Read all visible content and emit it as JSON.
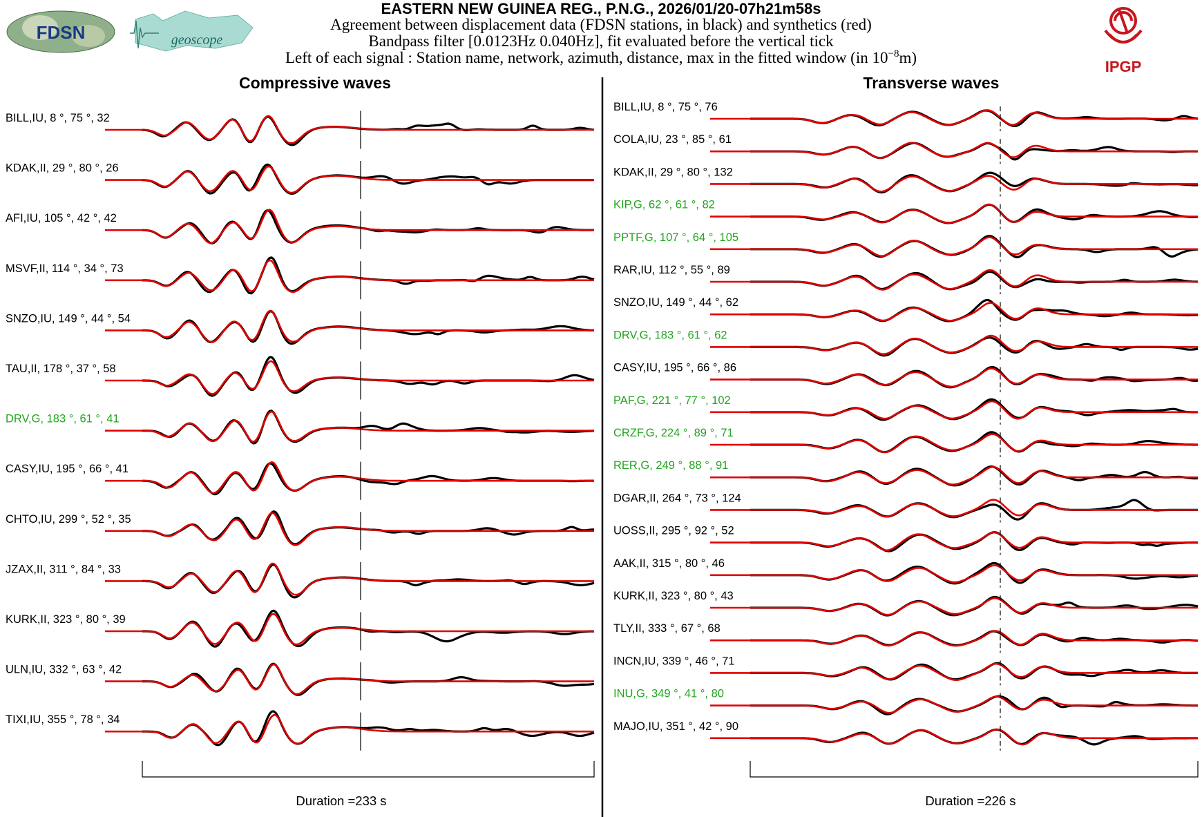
{
  "header": {
    "title": "EASTERN NEW GUINEA REG., P.N.G., 2026/01/20-07h21m58s",
    "line1": "Agreement between displacement data (FDSN stations, in black) and synthetics (red)",
    "line2": "Bandpass filter [0.0123Hz 0.040Hz], fit evaluated before the vertical tick",
    "line3_prefix": "Left of each signal : Station name, network, azimuth, distance, max in the fitted window (in 10",
    "line3_exp": "−8",
    "line3_suffix": "m)"
  },
  "logos": {
    "fdsn": "FDSN",
    "geoscope": "geoscope",
    "ipgp": "IPGP"
  },
  "colors": {
    "data": "#000000",
    "synthetic": "#e00000",
    "green_station": "#22a51e",
    "black_station": "#000000",
    "ipgp": "#c8161d"
  },
  "chart_data": [
    {
      "type": "seismogram",
      "title": "Compressive waves",
      "duration_label": "Duration =233 s",
      "duration_s": 233,
      "stations": [
        {
          "name": "BILL",
          "net": "IU",
          "az": "8",
          "dist": "75",
          "max": "32",
          "green": false
        },
        {
          "name": "KDAK",
          "net": "II",
          "az": "29",
          "dist": "80",
          "max": "26",
          "green": false
        },
        {
          "name": "AFI",
          "net": "IU",
          "az": "105",
          "dist": "42",
          "max": "42",
          "green": false
        },
        {
          "name": "MSVF",
          "net": "II",
          "az": "114",
          "dist": "34",
          "max": "73",
          "green": false
        },
        {
          "name": "SNZO",
          "net": "IU",
          "az": "149",
          "dist": "44",
          "max": "54",
          "green": false
        },
        {
          "name": "TAU",
          "net": "II",
          "az": "178",
          "dist": "37",
          "max": "58",
          "green": false
        },
        {
          "name": "DRV",
          "net": "G",
          "az": "183",
          "dist": "61",
          "max": "41",
          "green": true
        },
        {
          "name": "CASY",
          "net": "IU",
          "az": "195",
          "dist": "66",
          "max": "41",
          "green": false
        },
        {
          "name": "CHTO",
          "net": "IU",
          "az": "299",
          "dist": "52",
          "max": "35",
          "green": false
        },
        {
          "name": "JZAX",
          "net": "II",
          "az": "311",
          "dist": "84",
          "max": "33",
          "green": false
        },
        {
          "name": "KURK",
          "net": "II",
          "az": "323",
          "dist": "80",
          "max": "39",
          "green": false
        },
        {
          "name": "ULN",
          "net": "IU",
          "az": "332",
          "dist": "63",
          "max": "42",
          "green": false
        },
        {
          "name": "TIXI",
          "net": "IU",
          "az": "355",
          "dist": "78",
          "max": "34",
          "green": false
        }
      ]
    },
    {
      "type": "seismogram",
      "title": "Transverse waves",
      "duration_label": "Duration =226 s",
      "duration_s": 226,
      "stations": [
        {
          "name": "BILL",
          "net": "IU",
          "az": "8",
          "dist": "75",
          "max": "76",
          "green": false
        },
        {
          "name": "COLA",
          "net": "IU",
          "az": "23",
          "dist": "85",
          "max": "61",
          "green": false
        },
        {
          "name": "KDAK",
          "net": "II",
          "az": "29",
          "dist": "80",
          "max": "132",
          "green": false
        },
        {
          "name": "KIP",
          "net": "G",
          "az": "62",
          "dist": "61",
          "max": "82",
          "green": true
        },
        {
          "name": "PPTF",
          "net": "G",
          "az": "107",
          "dist": "64",
          "max": "105",
          "green": true
        },
        {
          "name": "RAR",
          "net": "IU",
          "az": "112",
          "dist": "55",
          "max": "89",
          "green": false
        },
        {
          "name": "SNZO",
          "net": "IU",
          "az": "149",
          "dist": "44",
          "max": "62",
          "green": false
        },
        {
          "name": "DRV",
          "net": "G",
          "az": "183",
          "dist": "61",
          "max": "62",
          "green": true
        },
        {
          "name": "CASY",
          "net": "IU",
          "az": "195",
          "dist": "66",
          "max": "86",
          "green": false
        },
        {
          "name": "PAF",
          "net": "G",
          "az": "221",
          "dist": "77",
          "max": "102",
          "green": true
        },
        {
          "name": "CRZF",
          "net": "G",
          "az": "224",
          "dist": "89",
          "max": "71",
          "green": true
        },
        {
          "name": "RER",
          "net": "G",
          "az": "249",
          "dist": "88",
          "max": "91",
          "green": true
        },
        {
          "name": "DGAR",
          "net": "II",
          "az": "264",
          "dist": "73",
          "max": "124",
          "green": false
        },
        {
          "name": "UOSS",
          "net": "II",
          "az": "295",
          "dist": "92",
          "max": "52",
          "green": false
        },
        {
          "name": "AAK",
          "net": "II",
          "az": "315",
          "dist": "80",
          "max": "46",
          "green": false
        },
        {
          "name": "KURK",
          "net": "II",
          "az": "323",
          "dist": "80",
          "max": "43",
          "green": false
        },
        {
          "name": "TLY",
          "net": "II",
          "az": "333",
          "dist": "67",
          "max": "68",
          "green": false
        },
        {
          "name": "INCN",
          "net": "IU",
          "az": "339",
          "dist": "46",
          "max": "71",
          "green": false
        },
        {
          "name": "INU",
          "net": "G",
          "az": "349",
          "dist": "41",
          "max": "80",
          "green": true
        },
        {
          "name": "MAJO",
          "net": "IU",
          "az": "351",
          "dist": "42",
          "max": "90",
          "green": false
        }
      ]
    }
  ]
}
